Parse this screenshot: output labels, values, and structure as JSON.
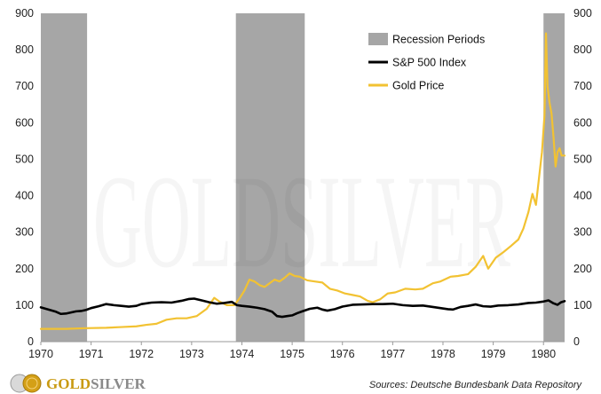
{
  "chart_data": {
    "type": "line",
    "title": "",
    "xlabel": "",
    "ylabel": "",
    "x_range": [
      1970.0,
      1980.42
    ],
    "x_ticks": [
      "1970",
      "1971",
      "1972",
      "1973",
      "1974",
      "1975",
      "1976",
      "1977",
      "1978",
      "1979",
      "1980"
    ],
    "ylim": [
      0,
      900
    ],
    "y_ticks_left": [
      "0",
      "100",
      "200",
      "300",
      "400",
      "500",
      "600",
      "700",
      "800",
      "900"
    ],
    "y_ticks_right": [
      "0",
      "100",
      "200",
      "300",
      "400",
      "500",
      "600",
      "700",
      "800",
      "900"
    ],
    "grid": false,
    "legend_position": "top-right",
    "recessions": [
      {
        "start": 1970.0,
        "end": 1970.92
      },
      {
        "start": 1973.88,
        "end": 1975.25
      },
      {
        "start": 1980.0,
        "end": 1980.42
      }
    ],
    "legend": [
      {
        "label": "Recession Periods",
        "color": "#a6a6a6",
        "kind": "box"
      },
      {
        "label": "S&P 500 Index",
        "color": "#000000",
        "kind": "line"
      },
      {
        "label": "Gold Price",
        "color": "#f2c232",
        "kind": "line"
      }
    ],
    "series": [
      {
        "name": "S&P 500 Index",
        "color": "#000000",
        "points": [
          [
            1970.0,
            94
          ],
          [
            1970.1,
            90
          ],
          [
            1970.2,
            86
          ],
          [
            1970.3,
            82
          ],
          [
            1970.4,
            76
          ],
          [
            1970.5,
            77
          ],
          [
            1970.6,
            80
          ],
          [
            1970.7,
            83
          ],
          [
            1970.8,
            84
          ],
          [
            1970.9,
            87
          ],
          [
            1971.0,
            92
          ],
          [
            1971.15,
            97
          ],
          [
            1971.3,
            103
          ],
          [
            1971.45,
            100
          ],
          [
            1971.6,
            98
          ],
          [
            1971.75,
            96
          ],
          [
            1971.9,
            98
          ],
          [
            1972.0,
            103
          ],
          [
            1972.2,
            107
          ],
          [
            1972.4,
            108
          ],
          [
            1972.6,
            107
          ],
          [
            1972.8,
            112
          ],
          [
            1972.95,
            117
          ],
          [
            1973.05,
            118
          ],
          [
            1973.2,
            113
          ],
          [
            1973.35,
            108
          ],
          [
            1973.5,
            104
          ],
          [
            1973.65,
            106
          ],
          [
            1973.8,
            109
          ],
          [
            1973.9,
            100
          ],
          [
            1974.0,
            98
          ],
          [
            1974.15,
            96
          ],
          [
            1974.3,
            93
          ],
          [
            1974.45,
            89
          ],
          [
            1974.6,
            82
          ],
          [
            1974.7,
            70
          ],
          [
            1974.8,
            68
          ],
          [
            1974.9,
            70
          ],
          [
            1975.0,
            72
          ],
          [
            1975.1,
            78
          ],
          [
            1975.2,
            83
          ],
          [
            1975.35,
            90
          ],
          [
            1975.5,
            93
          ],
          [
            1975.6,
            88
          ],
          [
            1975.7,
            85
          ],
          [
            1975.85,
            89
          ],
          [
            1976.0,
            96
          ],
          [
            1976.2,
            101
          ],
          [
            1976.4,
            102
          ],
          [
            1976.6,
            103
          ],
          [
            1976.8,
            103
          ],
          [
            1977.0,
            104
          ],
          [
            1977.2,
            100
          ],
          [
            1977.4,
            98
          ],
          [
            1977.6,
            99
          ],
          [
            1977.8,
            95
          ],
          [
            1977.95,
            92
          ],
          [
            1978.1,
            89
          ],
          [
            1978.2,
            88
          ],
          [
            1978.35,
            95
          ],
          [
            1978.5,
            98
          ],
          [
            1978.65,
            102
          ],
          [
            1978.8,
            97
          ],
          [
            1978.95,
            96
          ],
          [
            1979.1,
            99
          ],
          [
            1979.3,
            100
          ],
          [
            1979.5,
            102
          ],
          [
            1979.7,
            106
          ],
          [
            1979.85,
            107
          ],
          [
            1980.0,
            110
          ],
          [
            1980.1,
            113
          ],
          [
            1980.2,
            105
          ],
          [
            1980.28,
            101
          ],
          [
            1980.35,
            108
          ],
          [
            1980.42,
            111
          ]
        ]
      },
      {
        "name": "Gold Price",
        "color": "#f2c232",
        "points": [
          [
            1970.0,
            35
          ],
          [
            1970.5,
            35
          ],
          [
            1970.9,
            37
          ],
          [
            1971.3,
            38
          ],
          [
            1971.6,
            40
          ],
          [
            1971.9,
            42
          ],
          [
            1972.1,
            46
          ],
          [
            1972.3,
            49
          ],
          [
            1972.5,
            60
          ],
          [
            1972.7,
            64
          ],
          [
            1972.9,
            64
          ],
          [
            1973.1,
            70
          ],
          [
            1973.3,
            90
          ],
          [
            1973.45,
            120
          ],
          [
            1973.55,
            110
          ],
          [
            1973.7,
            100
          ],
          [
            1973.85,
            100
          ],
          [
            1973.95,
            118
          ],
          [
            1974.05,
            140
          ],
          [
            1974.15,
            170
          ],
          [
            1974.25,
            165
          ],
          [
            1974.35,
            155
          ],
          [
            1974.45,
            150
          ],
          [
            1974.55,
            160
          ],
          [
            1974.65,
            170
          ],
          [
            1974.75,
            165
          ],
          [
            1974.85,
            175
          ],
          [
            1974.95,
            187
          ],
          [
            1975.05,
            180
          ],
          [
            1975.15,
            178
          ],
          [
            1975.3,
            168
          ],
          [
            1975.45,
            165
          ],
          [
            1975.6,
            162
          ],
          [
            1975.75,
            145
          ],
          [
            1975.9,
            140
          ],
          [
            1976.05,
            132
          ],
          [
            1976.2,
            128
          ],
          [
            1976.35,
            124
          ],
          [
            1976.5,
            112
          ],
          [
            1976.6,
            108
          ],
          [
            1976.75,
            116
          ],
          [
            1976.9,
            132
          ],
          [
            1977.05,
            135
          ],
          [
            1977.25,
            145
          ],
          [
            1977.45,
            143
          ],
          [
            1977.6,
            145
          ],
          [
            1977.8,
            160
          ],
          [
            1977.95,
            165
          ],
          [
            1978.15,
            178
          ],
          [
            1978.3,
            180
          ],
          [
            1978.5,
            185
          ],
          [
            1978.65,
            205
          ],
          [
            1978.8,
            235
          ],
          [
            1978.9,
            200
          ],
          [
            1979.05,
            230
          ],
          [
            1979.2,
            245
          ],
          [
            1979.35,
            262
          ],
          [
            1979.5,
            280
          ],
          [
            1979.6,
            310
          ],
          [
            1979.7,
            355
          ],
          [
            1979.78,
            405
          ],
          [
            1979.85,
            375
          ],
          [
            1979.92,
            460
          ],
          [
            1979.97,
            520
          ],
          [
            1980.02,
            620
          ],
          [
            1980.05,
            845
          ],
          [
            1980.08,
            700
          ],
          [
            1980.12,
            655
          ],
          [
            1980.16,
            625
          ],
          [
            1980.2,
            560
          ],
          [
            1980.24,
            480
          ],
          [
            1980.28,
            520
          ],
          [
            1980.32,
            530
          ],
          [
            1980.36,
            510
          ],
          [
            1980.42,
            510
          ]
        ]
      }
    ]
  },
  "watermark": "GOLDSILVER",
  "logo": {
    "text_gold": "GOLD",
    "text_silver": "SILVER"
  },
  "source_note": "Sources: Deutsche Bundesbank Data Repository"
}
